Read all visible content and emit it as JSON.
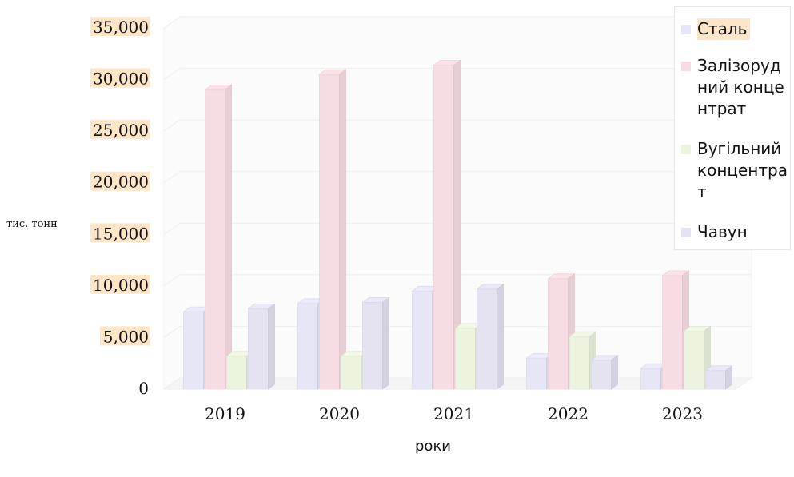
{
  "chart_data": {
    "type": "bar",
    "style": "3d-clustered",
    "ylabel": "тис. тонн",
    "xlabel": "роки",
    "ylim": [
      0,
      35000
    ],
    "yticks": [
      "35,000",
      "30,000",
      "25,000",
      "20,000",
      "15,000",
      "10,000",
      "5,000",
      "0"
    ],
    "ytick_values": [
      35000,
      30000,
      25000,
      20000,
      15000,
      10000,
      5000,
      0
    ],
    "categories": [
      "2019",
      "2020",
      "2021",
      "2022",
      "2023"
    ],
    "series": [
      {
        "name": "Сталь",
        "values": [
          7500,
          8300,
          9500,
          3000,
          2000
        ],
        "color": "#e6e6f7"
      },
      {
        "name": "Залізорудний концентрат",
        "values": [
          29000,
          30500,
          31400,
          10700,
          11000
        ],
        "color": "#f7dde3"
      },
      {
        "name": "Вугільний концентрат",
        "values": [
          3200,
          3200,
          5900,
          5100,
          5600
        ],
        "color": "#ecf3df"
      },
      {
        "name": "Чавун",
        "values": [
          7800,
          8400,
          9700,
          2800,
          1800
        ],
        "color": "#e5e2f1"
      }
    ],
    "legend_position": "right",
    "grid": true,
    "tick_highlight_color": "#fde6c8"
  }
}
